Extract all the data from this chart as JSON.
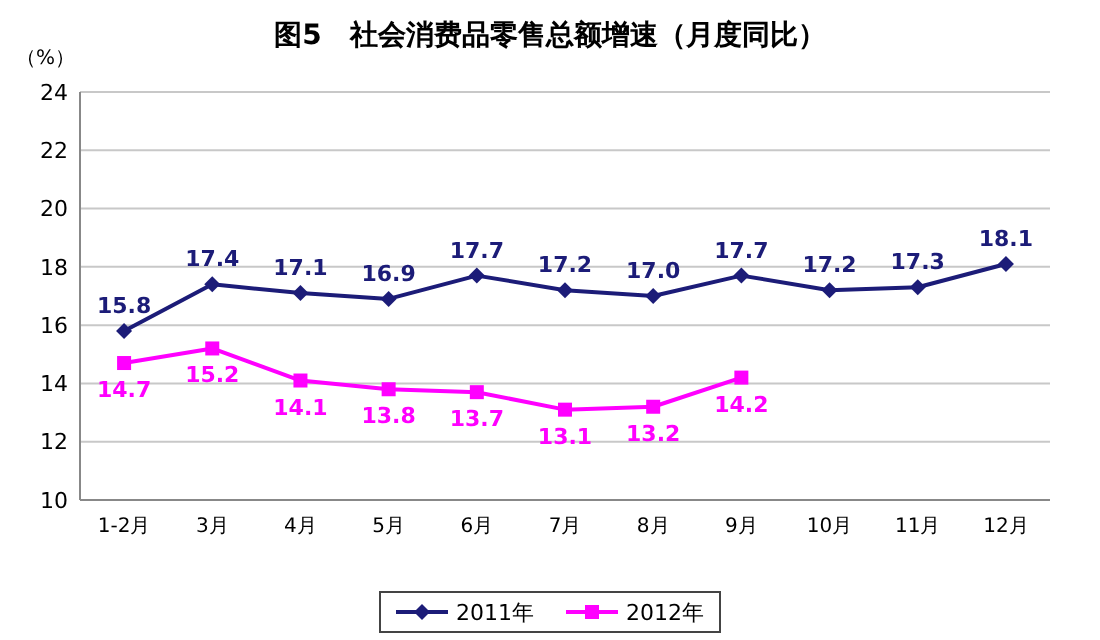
{
  "chart_data": {
    "type": "line",
    "title": "图5　社会消费品零售总额增速（月度同比）",
    "ylabel": "（%）",
    "categories": [
      "1-2月",
      "3月",
      "4月",
      "5月",
      "6月",
      "7月",
      "8月",
      "9月",
      "10月",
      "11月",
      "12月"
    ],
    "series": [
      {
        "name": "2011年",
        "color": "#1c1c78",
        "marker": "diamond",
        "values": [
          15.8,
          17.4,
          17.1,
          16.9,
          17.7,
          17.2,
          17.0,
          17.7,
          17.2,
          17.3,
          18.1
        ],
        "value_labels": [
          "15.8",
          "17.4",
          "17.1",
          "16.9",
          "17.7",
          "17.2",
          "17.0",
          "17.7",
          "17.2",
          "17.3",
          "18.1"
        ]
      },
      {
        "name": "2012年",
        "color": "#ff00ff",
        "marker": "square",
        "values": [
          14.7,
          15.2,
          14.1,
          13.8,
          13.7,
          13.1,
          13.2,
          14.2,
          null,
          null,
          null
        ],
        "value_labels": [
          "14.7",
          "15.2",
          "14.1",
          "13.8",
          "13.7",
          "13.1",
          "13.2",
          "14.2",
          null,
          null,
          null
        ]
      }
    ],
    "ylim": [
      10,
      24
    ],
    "yticks": [
      10,
      12,
      14,
      16,
      18,
      20,
      22,
      24
    ],
    "grid": "y",
    "legend": "bottom",
    "line_style": "solid"
  }
}
